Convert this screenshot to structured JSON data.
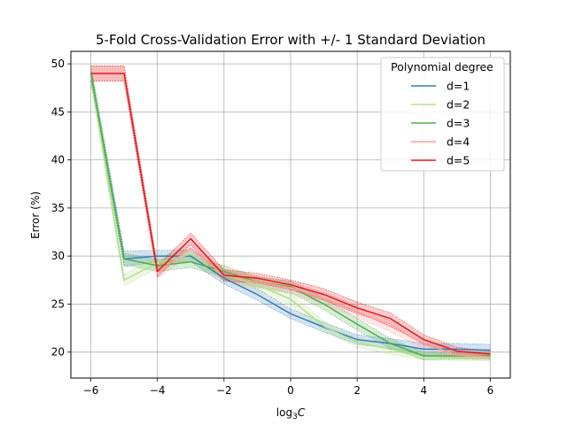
{
  "chart_data": {
    "type": "line",
    "title": "5-Fold Cross-Validation Error with +/- 1 Standard Deviation",
    "xlabel": "log",
    "xlabel_sub": "3",
    "xlabel_var": "C",
    "ylabel": "Error (%)",
    "xlim": [
      -6.6,
      6.6
    ],
    "ylim": [
      17.3,
      51.3
    ],
    "xticks": [
      -6,
      -4,
      -2,
      0,
      2,
      4,
      6
    ],
    "xtick_labels": [
      "−6",
      "−4",
      "−2",
      "0",
      "2",
      "4",
      "6"
    ],
    "yticks": [
      20,
      25,
      30,
      35,
      40,
      45,
      50
    ],
    "ytick_labels": [
      "20",
      "25",
      "30",
      "35",
      "40",
      "45",
      "50"
    ],
    "grid": true,
    "legend": {
      "title": "Polynomial degree",
      "placement": "top-right"
    },
    "x": [
      -6,
      -5,
      -4,
      -3,
      -2,
      -1,
      0,
      1,
      2,
      3,
      4,
      5,
      6
    ],
    "series": [
      {
        "name": "d=1",
        "color": "#377eb8",
        "values": [
          49.0,
          29.7,
          30.0,
          30.0,
          27.7,
          26.0,
          24.0,
          22.6,
          21.3,
          20.9,
          20.3,
          20.3,
          20.2
        ],
        "std": [
          0.8,
          0.8,
          0.6,
          0.6,
          0.6,
          0.6,
          0.5,
          0.5,
          0.5,
          0.5,
          0.6,
          0.6,
          0.6
        ]
      },
      {
        "name": "d=2",
        "color": "#b2df8a",
        "values": [
          48.8,
          27.5,
          29.3,
          30.2,
          28.0,
          27.0,
          25.5,
          22.7,
          21.0,
          20.3,
          19.6,
          19.4,
          19.4
        ],
        "std": [
          0.8,
          0.6,
          0.6,
          0.6,
          0.6,
          0.6,
          0.6,
          0.5,
          0.5,
          0.5,
          0.4,
          0.3,
          0.3
        ]
      },
      {
        "name": "d=3",
        "color": "#4daf4a",
        "values": [
          49.0,
          29.7,
          29.0,
          29.4,
          28.4,
          27.3,
          26.8,
          25.0,
          22.9,
          20.9,
          19.6,
          19.6,
          19.6
        ],
        "std": [
          0.8,
          0.6,
          0.6,
          0.6,
          0.6,
          0.5,
          0.6,
          0.6,
          0.6,
          0.5,
          0.4,
          0.3,
          0.3
        ]
      },
      {
        "name": "d=4",
        "color": "#fb9a99",
        "values": [
          49.0,
          49.0,
          28.3,
          30.8,
          28.0,
          27.3,
          26.7,
          25.6,
          24.2,
          22.7,
          20.9,
          19.7,
          19.5
        ],
        "std": [
          0.8,
          0.8,
          0.6,
          0.6,
          0.6,
          0.6,
          0.6,
          0.6,
          0.6,
          0.6,
          0.5,
          0.4,
          0.3
        ]
      },
      {
        "name": "d=5",
        "color": "#e41a1c",
        "values": [
          49.0,
          49.0,
          28.4,
          31.8,
          28.0,
          27.7,
          27.0,
          26.0,
          24.6,
          23.5,
          21.3,
          20.1,
          19.8
        ],
        "std": [
          0.8,
          0.8,
          0.6,
          0.6,
          0.6,
          0.5,
          0.5,
          0.6,
          0.6,
          0.6,
          0.5,
          0.4,
          0.3
        ]
      }
    ]
  }
}
